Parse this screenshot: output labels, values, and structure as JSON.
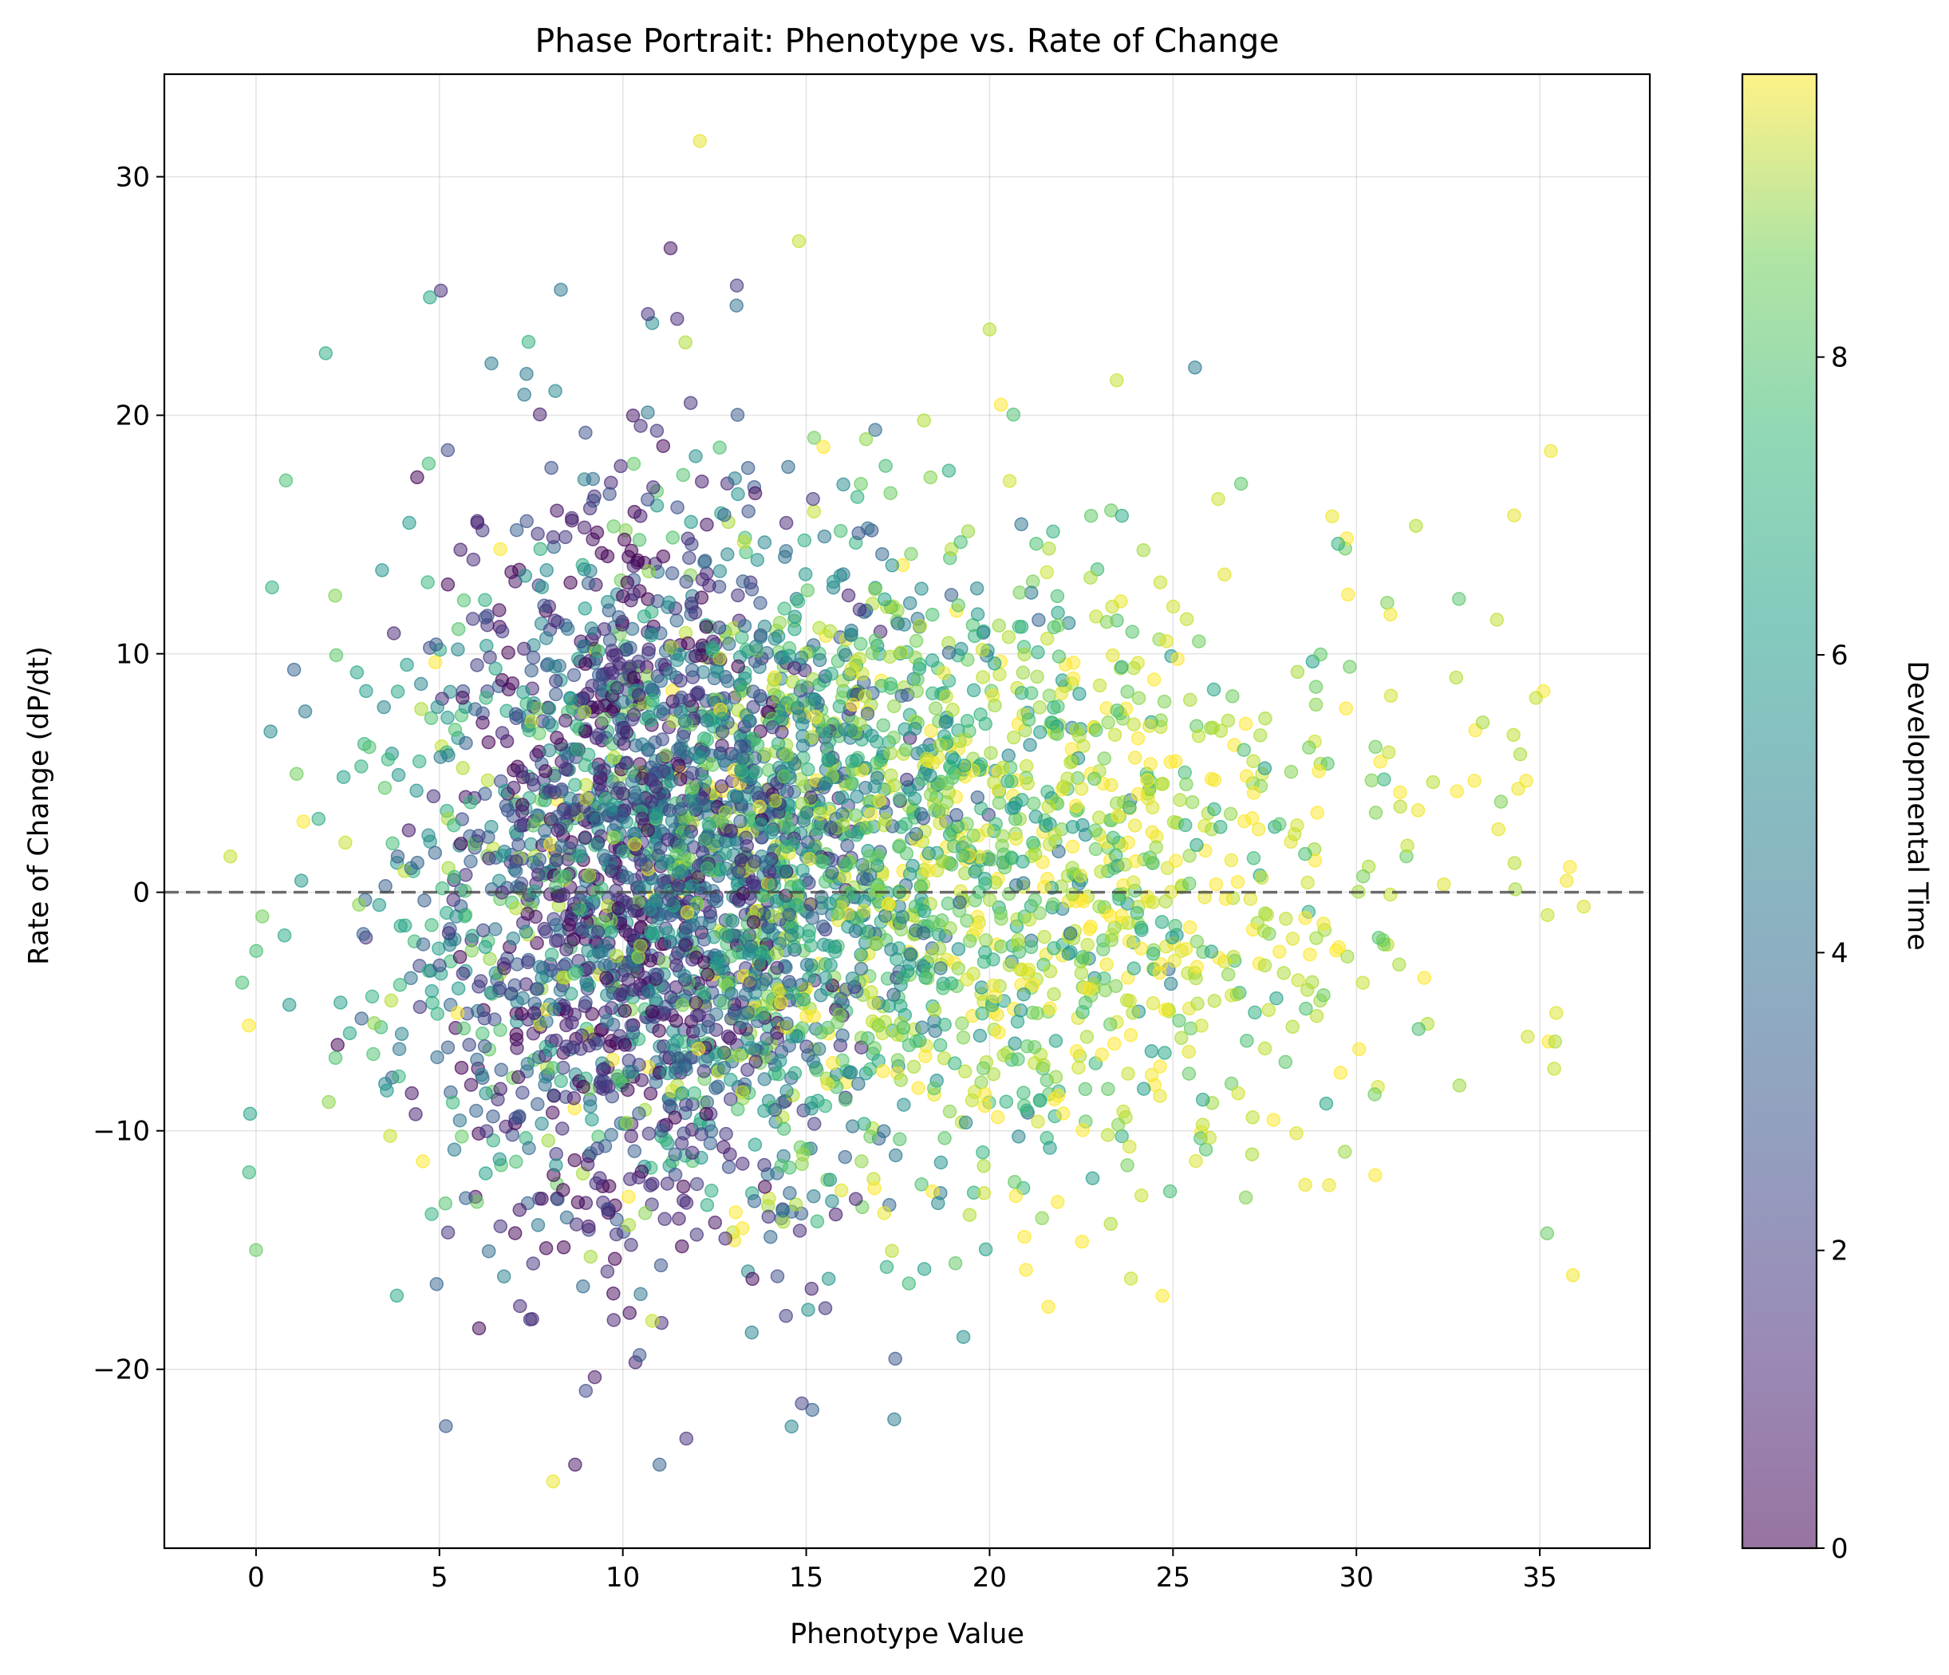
{
  "chart_data": {
    "type": "scatter",
    "title": "Phase Portrait: Phenotype vs. Rate of Change",
    "xlabel": "Phenotype Value",
    "ylabel": "Rate of Change (dP/dt)",
    "xlim": [
      -2.5,
      38
    ],
    "ylim": [
      -27.5,
      34.3
    ],
    "xticks": [
      0,
      5,
      10,
      15,
      20,
      25,
      30,
      35
    ],
    "xtick_labels": [
      "0",
      "5",
      "10",
      "15",
      "20",
      "25",
      "30",
      "35"
    ],
    "yticks": [
      -20,
      -10,
      0,
      10,
      20,
      30
    ],
    "ytick_labels": [
      "−20",
      "−10",
      "0",
      "10",
      "20",
      "30"
    ],
    "grid": true,
    "reference_line": {
      "y": 0,
      "style": "dashed",
      "color": "#404040"
    },
    "colorbar": {
      "label": "Developmental Time",
      "colormap": "viridis",
      "range": [
        0,
        9.9
      ],
      "ticks": [
        0,
        2,
        4,
        6,
        8
      ],
      "tick_labels": [
        "0",
        "2",
        "4",
        "6",
        "8"
      ],
      "alpha": 0.5
    },
    "marker_alpha": 0.5,
    "series_groups": [
      {
        "time": 0.5,
        "count": 550,
        "x_mean": 10.2,
        "x_sd": 2.2,
        "y_mean": 0.5,
        "y_sd": 8.0
      },
      {
        "time": 2.0,
        "count": 650,
        "x_mean": 11.0,
        "x_sd": 3.0,
        "y_mean": 1.0,
        "y_sd": 7.5
      },
      {
        "time": 4.0,
        "count": 750,
        "x_mean": 12.5,
        "x_sd": 4.0,
        "y_mean": 1.5,
        "y_sd": 7.2
      },
      {
        "time": 6.0,
        "count": 800,
        "x_mean": 14.5,
        "x_sd": 5.5,
        "y_mean": 1.5,
        "y_sd": 7.0
      },
      {
        "time": 8.0,
        "count": 750,
        "x_mean": 17.5,
        "x_sd": 6.0,
        "y_mean": 1.0,
        "y_sd": 6.8
      },
      {
        "time": 9.5,
        "count": 550,
        "x_mean": 20.5,
        "x_sd": 7.0,
        "y_mean": 0.5,
        "y_sd": 6.8
      }
    ],
    "highlight_points": [
      {
        "x": 12.1,
        "y": 31.5,
        "t": 9.5
      },
      {
        "x": 11.3,
        "y": 27.0,
        "t": 0.5
      },
      {
        "x": 14.8,
        "y": 27.3,
        "t": 9.0
      },
      {
        "x": 13.1,
        "y": 24.6,
        "t": 3.5
      },
      {
        "x": 1.9,
        "y": 22.6,
        "t": 6.0
      },
      {
        "x": 25.6,
        "y": 22.0,
        "t": 4.0
      },
      {
        "x": 8.1,
        "y": -24.7,
        "t": 9.6
      },
      {
        "x": 11.0,
        "y": -24.0,
        "t": 3.0
      },
      {
        "x": 8.7,
        "y": -24.0,
        "t": 0.5
      },
      {
        "x": -0.7,
        "y": 1.5,
        "t": 9.0
      },
      {
        "x": 35.3,
        "y": 18.5,
        "t": 9.7
      },
      {
        "x": 36.2,
        "y": -0.6,
        "t": 9.3
      },
      {
        "x": 34.3,
        "y": 15.8,
        "t": 9.5
      },
      {
        "x": 35.2,
        "y": -14.3,
        "t": 7.5
      },
      {
        "x": 0.0,
        "y": -15.0,
        "t": 7.5
      },
      {
        "x": 20.0,
        "y": 23.6,
        "t": 8.8
      },
      {
        "x": 14.6,
        "y": -22.4,
        "t": 4.5
      },
      {
        "x": 17.4,
        "y": -22.1,
        "t": 4.0
      }
    ]
  }
}
